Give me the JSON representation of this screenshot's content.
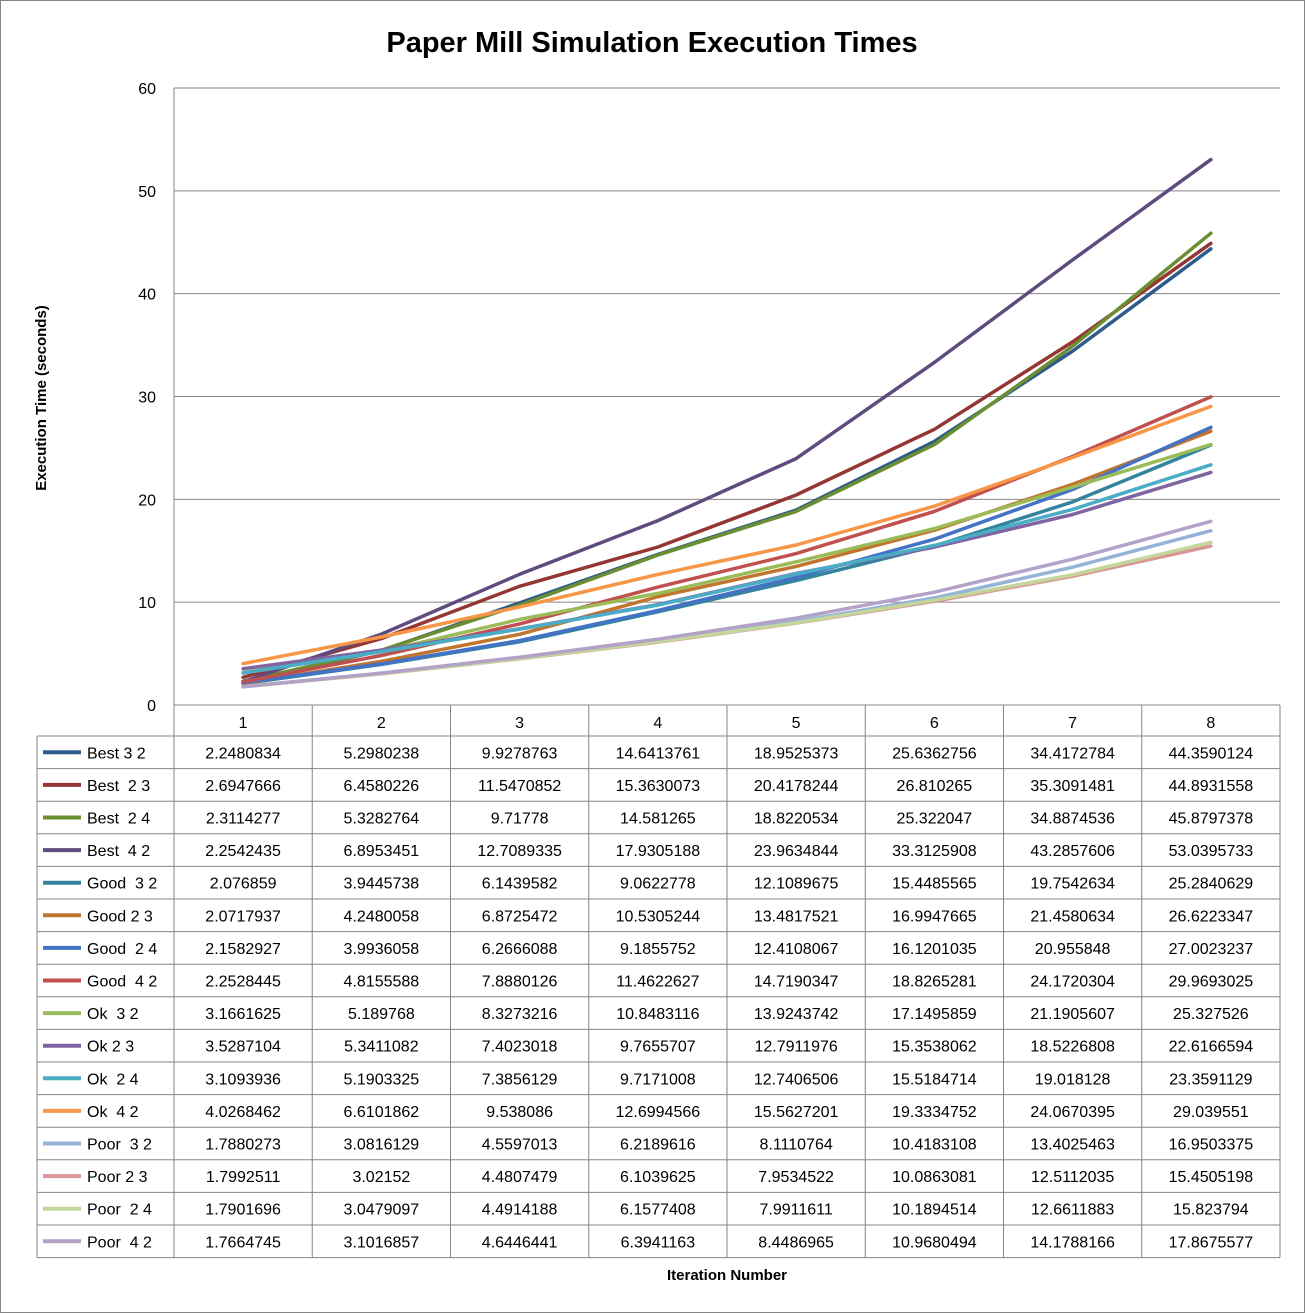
{
  "chart_data": {
    "type": "line",
    "title": "Paper Mill Simulation Execution Times",
    "xlabel": "Iteration Number",
    "ylabel": "Execution Time (seconds)",
    "ylim": [
      0,
      60
    ],
    "yticks": [
      "0",
      "10",
      "20",
      "30",
      "40",
      "50",
      "60"
    ],
    "grid": true,
    "legend": "data-table-below",
    "categories": [
      "1",
      "2",
      "3",
      "4",
      "5",
      "6",
      "7",
      "8"
    ],
    "series": [
      {
        "name": "Best 3 2",
        "color": "#2E5C8A",
        "values": [
          2.2480834,
          5.2980238,
          9.9278763,
          14.6413761,
          18.9525373,
          25.6362756,
          34.4172784,
          44.3590124
        ],
        "labels": [
          "2.2480834",
          "5.2980238",
          "9.9278763",
          "14.6413761",
          "18.9525373",
          "25.6362756",
          "34.4172784",
          "44.3590124"
        ]
      },
      {
        "name": "Best  2 3",
        "color": "#943634",
        "values": [
          2.6947666,
          6.4580226,
          11.5470852,
          15.3630073,
          20.4178244,
          26.810265,
          35.3091481,
          44.8931558
        ],
        "labels": [
          "2.6947666",
          "6.4580226",
          "11.5470852",
          "15.3630073",
          "20.4178244",
          "26.810265",
          "35.3091481",
          "44.8931558"
        ]
      },
      {
        "name": "Best  2 4",
        "color": "#6C8E33",
        "values": [
          2.3114277,
          5.3282764,
          9.71778,
          14.581265,
          18.8220534,
          25.322047,
          34.8874536,
          45.8797378
        ],
        "labels": [
          "2.3114277",
          "5.3282764",
          "9.71778",
          "14.581265",
          "18.8220534",
          "25.322047",
          "34.8874536",
          "45.8797378"
        ]
      },
      {
        "name": "Best  4 2",
        "color": "#5F4B7D",
        "values": [
          2.2542435,
          6.8953451,
          12.7089335,
          17.9305188,
          23.9634844,
          33.3125908,
          43.2857606,
          53.0395733
        ],
        "labels": [
          "2.2542435",
          "6.8953451",
          "12.7089335",
          "17.9305188",
          "23.9634844",
          "33.3125908",
          "43.2857606",
          "53.0395733"
        ]
      },
      {
        "name": "Good  3 2",
        "color": "#31849B",
        "values": [
          2.076859,
          3.9445738,
          6.1439582,
          9.0622778,
          12.1089675,
          15.4485565,
          19.7542634,
          25.2840629
        ],
        "labels": [
          "2.076859",
          "3.9445738",
          "6.1439582",
          "9.0622778",
          "12.1089675",
          "15.4485565",
          "19.7542634",
          "25.2840629"
        ]
      },
      {
        "name": "Good 2 3",
        "color": "#C0752F",
        "values": [
          2.0717937,
          4.2480058,
          6.8725472,
          10.5305244,
          13.4817521,
          16.9947665,
          21.4580634,
          26.6223347
        ],
        "labels": [
          "2.0717937",
          "4.2480058",
          "6.8725472",
          "10.5305244",
          "13.4817521",
          "16.9947665",
          "21.4580634",
          "26.6223347"
        ]
      },
      {
        "name": "Good  2 4",
        "color": "#4472C4",
        "values": [
          2.1582927,
          3.9936058,
          6.2666088,
          9.1855752,
          12.4108067,
          16.1201035,
          20.955848,
          27.0023237
        ],
        "labels": [
          "2.1582927",
          "3.9936058",
          "6.2666088",
          "9.1855752",
          "12.4108067",
          "16.1201035",
          "20.955848",
          "27.0023237"
        ]
      },
      {
        "name": "Good  4 2",
        "color": "#C0504D",
        "values": [
          2.2528445,
          4.8155588,
          7.8880126,
          11.4622627,
          14.7190347,
          18.8265281,
          24.1720304,
          29.9693025
        ],
        "labels": [
          "2.2528445",
          "4.8155588",
          "7.8880126",
          "11.4622627",
          "14.7190347",
          "18.8265281",
          "24.1720304",
          "29.9693025"
        ]
      },
      {
        "name": "Ok  3 2",
        "color": "#9BBB59",
        "values": [
          3.1661625,
          5.189768,
          8.3273216,
          10.8483116,
          13.9243742,
          17.1495859,
          21.1905607,
          25.327526
        ],
        "labels": [
          "3.1661625",
          "5.189768",
          "8.3273216",
          "10.8483116",
          "13.9243742",
          "17.1495859",
          "21.1905607",
          "25.327526"
        ]
      },
      {
        "name": "Ok 2 3",
        "color": "#8064A2",
        "values": [
          3.5287104,
          5.3411082,
          7.4023018,
          9.7655707,
          12.7911976,
          15.3538062,
          18.5226808,
          22.6166594
        ],
        "labels": [
          "3.5287104",
          "5.3411082",
          "7.4023018",
          "9.7655707",
          "12.7911976",
          "15.3538062",
          "18.5226808",
          "22.6166594"
        ]
      },
      {
        "name": "Ok  2 4",
        "color": "#4BACC6",
        "values": [
          3.1093936,
          5.1903325,
          7.3856129,
          9.7171008,
          12.7406506,
          15.5184714,
          19.018128,
          23.3591129
        ],
        "labels": [
          "3.1093936",
          "5.1903325",
          "7.3856129",
          "9.7171008",
          "12.7406506",
          "15.5184714",
          "19.018128",
          "23.3591129"
        ]
      },
      {
        "name": "Ok  4 2",
        "color": "#F79646",
        "values": [
          4.0268462,
          6.6101862,
          9.538086,
          12.6994566,
          15.5627201,
          19.3334752,
          24.0670395,
          29.039551
        ],
        "labels": [
          "4.0268462",
          "6.6101862",
          "9.538086",
          "12.6994566",
          "15.5627201",
          "19.3334752",
          "24.0670395",
          "29.039551"
        ]
      },
      {
        "name": "Poor  3 2",
        "color": "#95B3D7",
        "values": [
          1.7880273,
          3.0816129,
          4.5597013,
          6.2189616,
          8.1110764,
          10.4183108,
          13.4025463,
          16.9503375
        ],
        "labels": [
          "1.7880273",
          "3.0816129",
          "4.5597013",
          "6.2189616",
          "8.1110764",
          "10.4183108",
          "13.4025463",
          "16.9503375"
        ]
      },
      {
        "name": "Poor 2 3",
        "color": "#D99694",
        "values": [
          1.7992511,
          3.02152,
          4.4807479,
          6.1039625,
          7.9534522,
          10.0863081,
          12.5112035,
          15.4505198
        ],
        "labels": [
          "1.7992511",
          "3.02152",
          "4.4807479",
          "6.1039625",
          "7.9534522",
          "10.0863081",
          "12.5112035",
          "15.4505198"
        ]
      },
      {
        "name": "Poor  2 4",
        "color": "#C3D69B",
        "values": [
          1.7901696,
          3.0479097,
          4.4914188,
          6.1577408,
          7.9911611,
          10.1894514,
          12.6611883,
          15.823794
        ],
        "labels": [
          "1.7901696",
          "3.0479097",
          "4.4914188",
          "6.1577408",
          "7.9911611",
          "10.1894514",
          "12.6611883",
          "15.823794"
        ]
      },
      {
        "name": "Poor  4 2",
        "color": "#B2A2C7",
        "values": [
          1.7664745,
          3.1016857,
          4.6446441,
          6.3941163,
          8.4486965,
          10.9680494,
          14.1788166,
          17.8675577
        ],
        "labels": [
          "1.7664745",
          "3.1016857",
          "4.6446441",
          "6.3941163",
          "8.4486965",
          "10.9680494",
          "14.1788166",
          "17.8675577"
        ]
      }
    ]
  }
}
